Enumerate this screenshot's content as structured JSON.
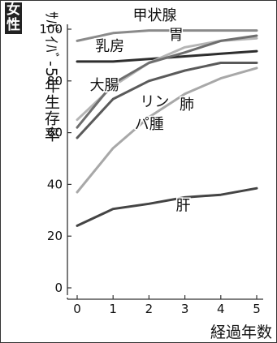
{
  "badge": {
    "line1": "女",
    "line2": "性"
  },
  "chart_data": {
    "type": "line",
    "ylabel": "ｻﾊﾞｲﾊﾞ-5年生存率",
    "xlabel": "経過年数",
    "x": [
      0,
      1,
      2,
      3,
      4,
      5
    ],
    "xticks": [
      "0",
      "1",
      "2",
      "3",
      "4",
      "5"
    ],
    "ylim": [
      0,
      100
    ],
    "yticks": [
      "0",
      "20",
      "40",
      "60",
      "80",
      "100"
    ],
    "grid": false,
    "series": [
      {
        "name": "甲状腺",
        "values": [
          95.5,
          98.5,
          99.5,
          99.5,
          99.5,
          99.5
        ],
        "color": "#8a8a8a",
        "width": 3
      },
      {
        "name": "乳房",
        "values": [
          87.5,
          87.5,
          88.5,
          89.5,
          90.5,
          91.5
        ],
        "color": "#2e2e2e",
        "width": 3
      },
      {
        "name": "胃",
        "values": [
          65,
          78,
          87,
          93,
          95.5,
          96.5
        ],
        "color": "#b5b5b5",
        "width": 3
      },
      {
        "name": "大腸",
        "values": [
          62,
          79,
          87,
          91,
          95.5,
          97.5
        ],
        "color": "#6e6e6e",
        "width": 3
      },
      {
        "name": "リンパ腫",
        "values": [
          58,
          73,
          80,
          84,
          87,
          87
        ],
        "color": "#5a5a5a",
        "width": 3
      },
      {
        "name": "肺",
        "values": [
          37,
          54,
          66,
          75,
          81,
          85
        ],
        "color": "#a8a8a8",
        "width": 3
      },
      {
        "name": "肝",
        "values": [
          24,
          30.5,
          32.5,
          35,
          36,
          38.5
        ],
        "color": "#444444",
        "width": 3
      }
    ],
    "annotations": [
      {
        "text": "甲状腺",
        "x": 1.55,
        "y": 103.5
      },
      {
        "text": "乳房",
        "x": 0.5,
        "y": 91.5
      },
      {
        "text": "胃",
        "x": 2.55,
        "y": 96
      },
      {
        "text": "大腸",
        "x": 0.35,
        "y": 76.5
      },
      {
        "text": "リン",
        "x": 1.75,
        "y": 70
      },
      {
        "text": "パ腫",
        "x": 1.6,
        "y": 61.5
      },
      {
        "text": "肺",
        "x": 2.85,
        "y": 69
      },
      {
        "text": "肝",
        "x": 2.75,
        "y": 30
      }
    ]
  }
}
